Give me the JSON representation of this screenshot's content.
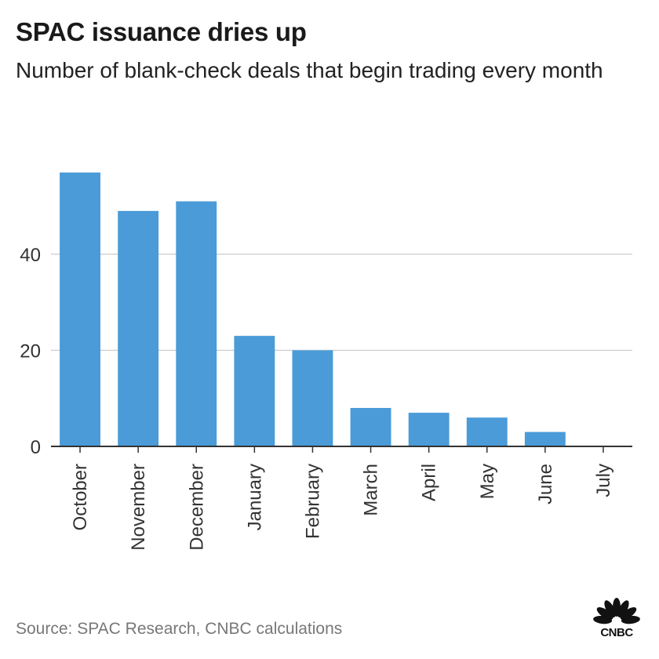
{
  "header": {
    "title": "SPAC issuance dries up",
    "subtitle": "Number of blank-check deals that begin trading every month"
  },
  "footer": {
    "source": "Source: SPAC Research, CNBC calculations",
    "logo_text": "CNBC"
  },
  "colors": {
    "bar": "#4A9BD8",
    "grid": "#cccccc",
    "axis": "#333333",
    "text": "#333333"
  },
  "chart_data": {
    "type": "bar",
    "title": "SPAC issuance dries up",
    "subtitle": "Number of blank-check deals that begin trading every month",
    "categories": [
      "October",
      "November",
      "December",
      "January",
      "February",
      "March",
      "April",
      "May",
      "June",
      "July"
    ],
    "values": [
      57,
      49,
      51,
      23,
      20,
      8,
      7,
      6,
      3,
      0
    ],
    "yticks": [
      0,
      20,
      40
    ],
    "ylim": [
      0,
      60
    ],
    "xlabel": "",
    "ylabel": "",
    "grid": true
  }
}
